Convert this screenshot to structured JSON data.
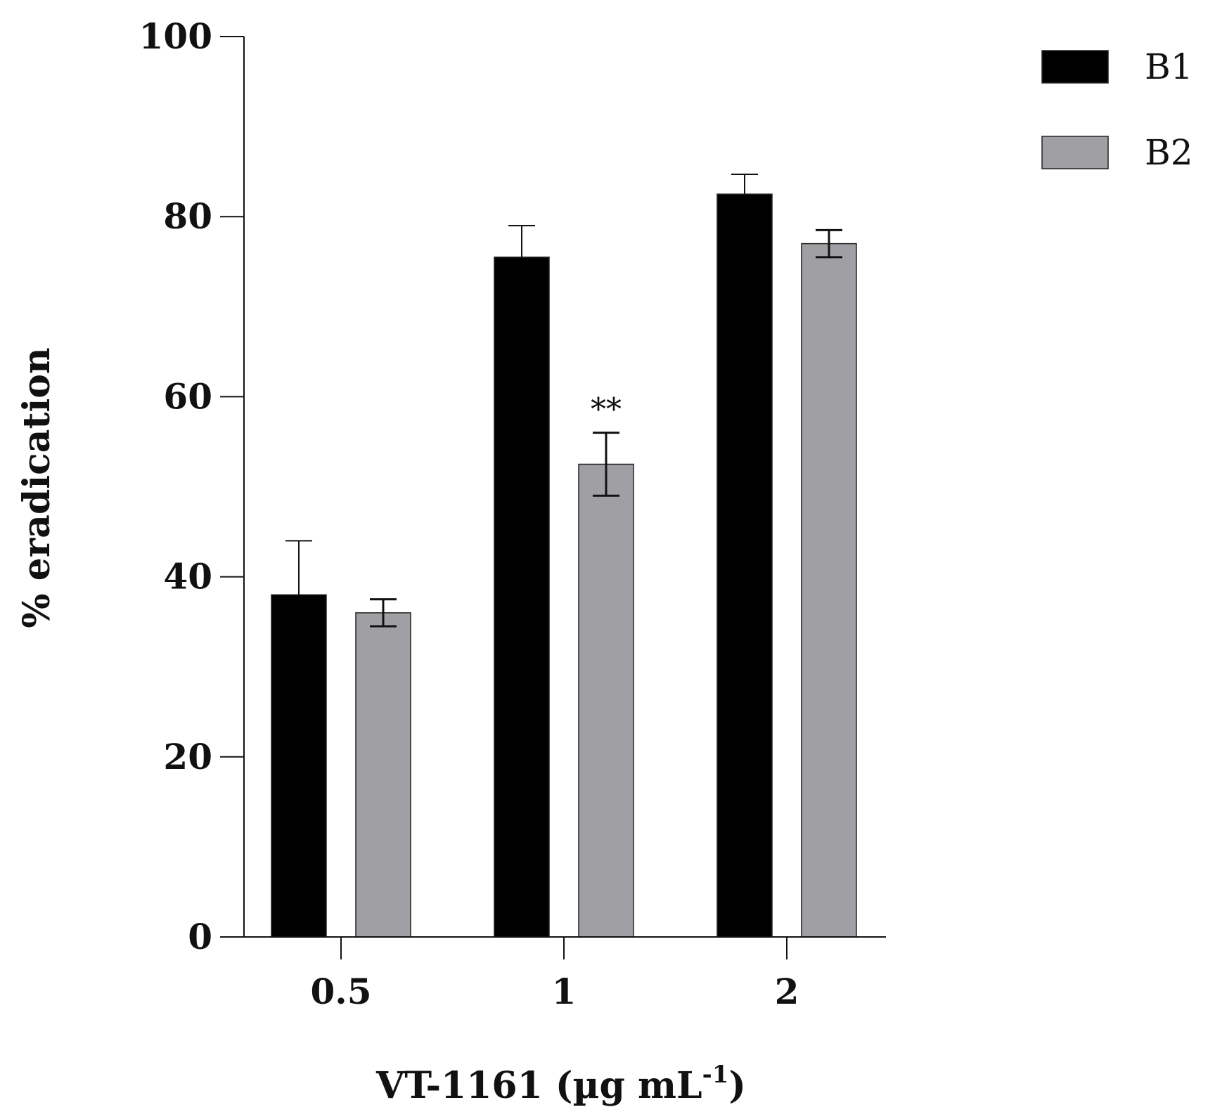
{
  "chart_data": {
    "type": "bar",
    "title": "",
    "xlabel": "VT-1161 (µg mL",
    "xlabel_sup": "-1",
    "xlabel_close": ")",
    "ylabel": "% eradication",
    "ylim": [
      0,
      100
    ],
    "yticks": [
      0,
      20,
      40,
      60,
      80,
      100
    ],
    "categories": [
      "0.5",
      "1",
      "2"
    ],
    "legend_position": "top-right",
    "series": [
      {
        "name": "B1",
        "color": "#000000",
        "values": [
          38,
          75.5,
          82.5
        ],
        "errors": [
          6,
          3.5,
          2.2
        ],
        "error_style": "upper"
      },
      {
        "name": "B2",
        "color": "#a0a0a4",
        "values": [
          36,
          52.5,
          77
        ],
        "errors": [
          1.5,
          3.5,
          1.5
        ],
        "error_style": "both"
      }
    ],
    "annotations": [
      {
        "series": 1,
        "category": 1,
        "text": "**"
      }
    ]
  }
}
